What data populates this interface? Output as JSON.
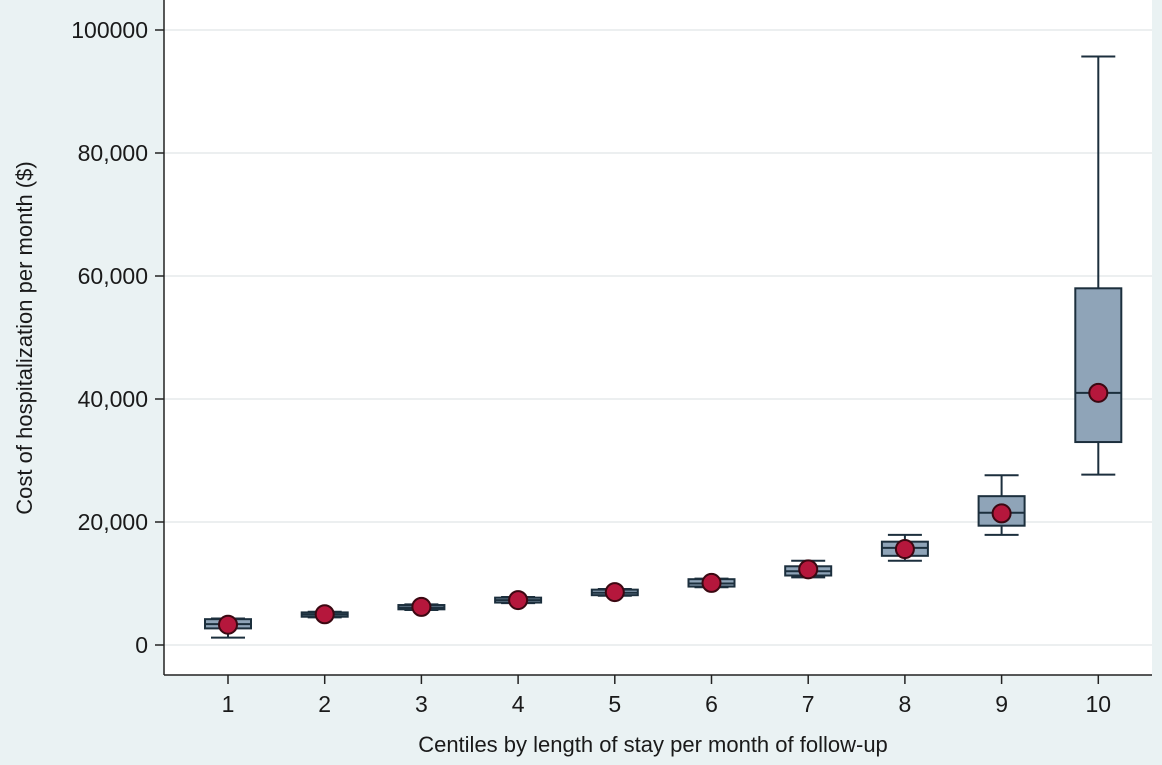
{
  "chart_data": {
    "type": "box",
    "xlabel": "Centiles by length of stay per month of follow-up",
    "ylabel": "Cost of hospitalization per month ($)",
    "categories": [
      "1",
      "2",
      "3",
      "4",
      "5",
      "6",
      "7",
      "8",
      "9",
      "10"
    ],
    "ylim": [
      0,
      100000
    ],
    "yticks": [
      {
        "value": 0,
        "label": "0"
      },
      {
        "value": 20000,
        "label": "20,000"
      },
      {
        "value": 40000,
        "label": "40,000"
      },
      {
        "value": 60000,
        "label": "60,000"
      },
      {
        "value": 80000,
        "label": "80,000"
      },
      {
        "value": 100000,
        "label": "100000"
      }
    ],
    "grid": true,
    "boxes": [
      {
        "category": "1",
        "whisker_low": 1200,
        "q1": 2700,
        "median": 3400,
        "q3": 4200,
        "whisker_high": 4300,
        "mean": 3300
      },
      {
        "category": "2",
        "whisker_low": 4500,
        "q1": 4600,
        "median": 4950,
        "q3": 5300,
        "whisker_high": 5400,
        "mean": 5000
      },
      {
        "category": "3",
        "whisker_low": 5700,
        "q1": 5800,
        "median": 6100,
        "q3": 6500,
        "whisker_high": 6600,
        "mean": 6200
      },
      {
        "category": "4",
        "whisker_low": 6800,
        "q1": 6900,
        "median": 7300,
        "q3": 7700,
        "whisker_high": 7800,
        "mean": 7300
      },
      {
        "category": "5",
        "whisker_low": 8000,
        "q1": 8100,
        "median": 8500,
        "q3": 9000,
        "whisker_high": 9100,
        "mean": 8600
      },
      {
        "category": "6",
        "whisker_low": 9400,
        "q1": 9500,
        "median": 10000,
        "q3": 10700,
        "whisker_high": 10800,
        "mean": 10100
      },
      {
        "category": "7",
        "whisker_low": 11000,
        "q1": 11300,
        "median": 12000,
        "q3": 12800,
        "whisker_high": 13700,
        "mean": 12300
      },
      {
        "category": "8",
        "whisker_low": 13700,
        "q1": 14500,
        "median": 15800,
        "q3": 16800,
        "whisker_high": 17900,
        "mean": 15600
      },
      {
        "category": "9",
        "whisker_low": 17900,
        "q1": 19400,
        "median": 21500,
        "q3": 24200,
        "whisker_high": 27600,
        "mean": 21400
      },
      {
        "category": "10",
        "whisker_low": 27700,
        "q1": 33000,
        "median": 41000,
        "q3": 58000,
        "whisker_high": 95700,
        "mean": 41000
      }
    ],
    "colors": {
      "box_fill": "#8fa4b8",
      "box_stroke": "#1c2f3d",
      "mean_fill": "#b5173c",
      "mean_stroke": "#3b0812",
      "grid": "#e6eaec",
      "plot_bg": "#ffffff",
      "outer_bg": "#eaf2f3"
    }
  }
}
